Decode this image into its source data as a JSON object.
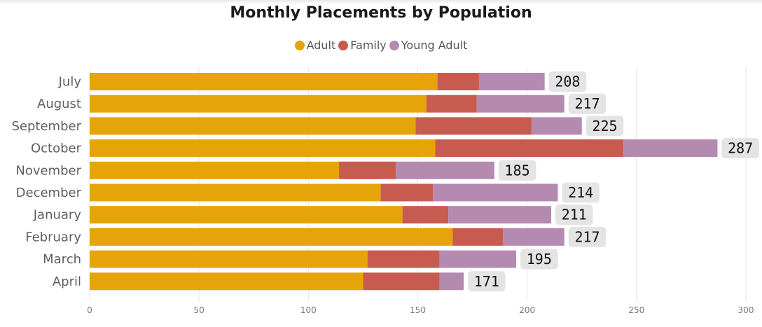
{
  "chart_data": {
    "type": "bar",
    "orientation": "horizontal",
    "stacked": true,
    "title": "Monthly Placements by Population",
    "categories": [
      "July",
      "August",
      "September",
      "October",
      "November",
      "December",
      "January",
      "February",
      "March",
      "April"
    ],
    "series": [
      {
        "name": "Adult",
        "color": "#E5A50A",
        "values": [
          159,
          154,
          149,
          158,
          114,
          133,
          143,
          166,
          127,
          125
        ]
      },
      {
        "name": "Family",
        "color": "#C75B50",
        "values": [
          19,
          23,
          53,
          86,
          26,
          24,
          21,
          23,
          33,
          35
        ]
      },
      {
        "name": "Young Adult",
        "color": "#B58AB0",
        "values": [
          30,
          40,
          23,
          43,
          45,
          57,
          47,
          28,
          35,
          11
        ]
      }
    ],
    "totals": [
      "208",
      "217",
      "225",
      "287",
      "185",
      "214",
      "211",
      "217",
      "195",
      "171"
    ],
    "xlim": [
      0,
      300
    ],
    "xticks": [
      "0",
      "50",
      "100",
      "150",
      "200",
      "250",
      "300"
    ],
    "xlabel": "",
    "ylabel": "",
    "grid": true,
    "legend_position": "top-center"
  }
}
